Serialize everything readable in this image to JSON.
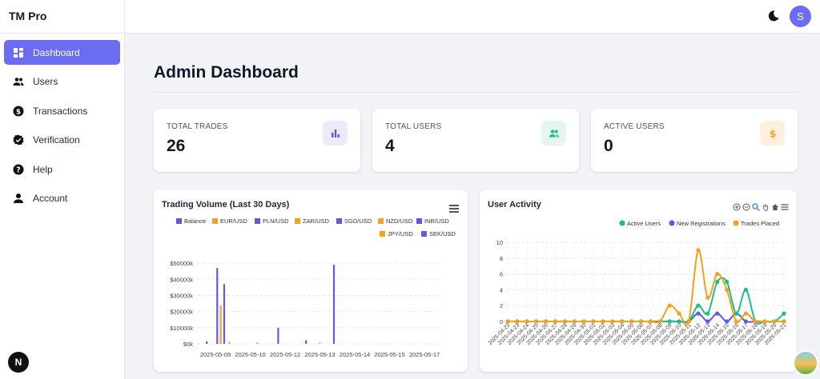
{
  "app": {
    "title": "TM Pro",
    "user_initial": "S",
    "framework_badge": "N"
  },
  "colors": {
    "accent": "#6b6cf2",
    "green": "#1fbf83",
    "orange": "#f5a01e",
    "purple": "#5b5ce6"
  },
  "sidebar": {
    "items": [
      {
        "label": "Dashboard",
        "icon": "dashboard-icon",
        "active": true
      },
      {
        "label": "Users",
        "icon": "users-icon"
      },
      {
        "label": "Transactions",
        "icon": "dollar-icon"
      },
      {
        "label": "Verification",
        "icon": "verified-icon"
      },
      {
        "label": "Help",
        "icon": "help-icon"
      },
      {
        "label": "Account",
        "icon": "account-icon"
      }
    ]
  },
  "page": {
    "title": "Admin Dashboard"
  },
  "stats": [
    {
      "label": "TOTAL TRADES",
      "value": "26",
      "icon": "bar-chart-icon"
    },
    {
      "label": "TOTAL USERS",
      "value": "4",
      "icon": "group-icon"
    },
    {
      "label": "ACTIVE USERS",
      "value": "0",
      "icon": "dollar-icon"
    }
  ],
  "panels": {
    "volume_title": "Trading Volume (Last 30 Days)",
    "activity_title": "User Activity"
  },
  "chart_data": [
    {
      "type": "bar",
      "title": "Trading Volume (Last 30 Days)",
      "legend": [
        "Balance",
        "EUR/USD",
        "PLN/USD",
        "ZAR/USD",
        "SGD/USD",
        "NZD/USD",
        "INR/USD",
        "JPY/USD",
        "SEK/USD"
      ],
      "y_ticks": [
        "$50000k",
        "$40000k",
        "$30000k",
        "$20000k",
        "$10000k",
        "$0k"
      ],
      "x_ticks": [
        "2025-05-09",
        "2025-05-10",
        "2025-05-12",
        "2025-05-13",
        "2025-05-14",
        "2025-05-15",
        "2025-05-17"
      ],
      "ylim": [
        0,
        55000
      ],
      "grid": true,
      "series": [
        {
          "name": "Balance",
          "color": "#5b5ce6",
          "points": [
            [
              -0.25,
              1500
            ],
            [
              0.05,
              47000
            ],
            [
              0.25,
              37000
            ],
            [
              1.8,
              10000
            ],
            [
              2.6,
              2200
            ],
            [
              3.4,
              49000
            ]
          ]
        },
        {
          "name": "EUR/USD",
          "color": "#f5a01e",
          "points": [
            [
              0.15,
              24000
            ],
            [
              0.4,
              1200
            ],
            [
              1.2,
              800
            ],
            [
              3.0,
              600
            ]
          ]
        }
      ]
    },
    {
      "type": "line",
      "title": "User Activity",
      "legend": [
        "Active Users",
        "New Registrations",
        "Trades Placed"
      ],
      "x": [
        "2025-04-22",
        "2025-04-23",
        "2025-04-24",
        "2025-04-25",
        "2025-04-26",
        "2025-04-27",
        "2025-04-28",
        "2025-04-29",
        "2025-04-30",
        "2025-05-01",
        "2025-05-02",
        "2025-05-03",
        "2025-05-04",
        "2025-05-05",
        "2025-05-06",
        "2025-05-07",
        "2025-05-08",
        "2025-05-09",
        "2025-05-10",
        "2025-05-11",
        "2025-05-12",
        "2025-05-13",
        "2025-05-14",
        "2025-05-15",
        "2025-05-16",
        "2025-05-17",
        "2025-05-18",
        "2025-05-19",
        "2025-05-20",
        "2025-05-21"
      ],
      "y_ticks": [
        "10",
        "8",
        "6",
        "4",
        "2",
        "0"
      ],
      "ylim": [
        0,
        10
      ],
      "grid": true,
      "series": [
        {
          "name": "Active Users",
          "color": "#1fbf83",
          "values": [
            0,
            0,
            0,
            0,
            0,
            0,
            0,
            0,
            0,
            0,
            0,
            0,
            0,
            0,
            0,
            0,
            0,
            0,
            0,
            0,
            2,
            1,
            5,
            5,
            1,
            4,
            0,
            0,
            0,
            1
          ]
        },
        {
          "name": "New Registrations",
          "color": "#5b5ce6",
          "values": [
            0,
            0,
            0,
            0,
            0,
            0,
            0,
            0,
            0,
            0,
            0,
            0,
            0,
            0,
            0,
            0,
            0,
            0,
            0,
            0,
            1,
            0,
            1,
            0,
            1,
            0,
            0,
            0,
            0,
            0
          ]
        },
        {
          "name": "Trades Placed",
          "color": "#f5a01e",
          "values": [
            0,
            0,
            0,
            0,
            0,
            0,
            0,
            0,
            0,
            0,
            0,
            0,
            0,
            0,
            0,
            0,
            0,
            2,
            1,
            0,
            9,
            3,
            6,
            4,
            0,
            1,
            0,
            0,
            0,
            0
          ]
        }
      ]
    }
  ]
}
